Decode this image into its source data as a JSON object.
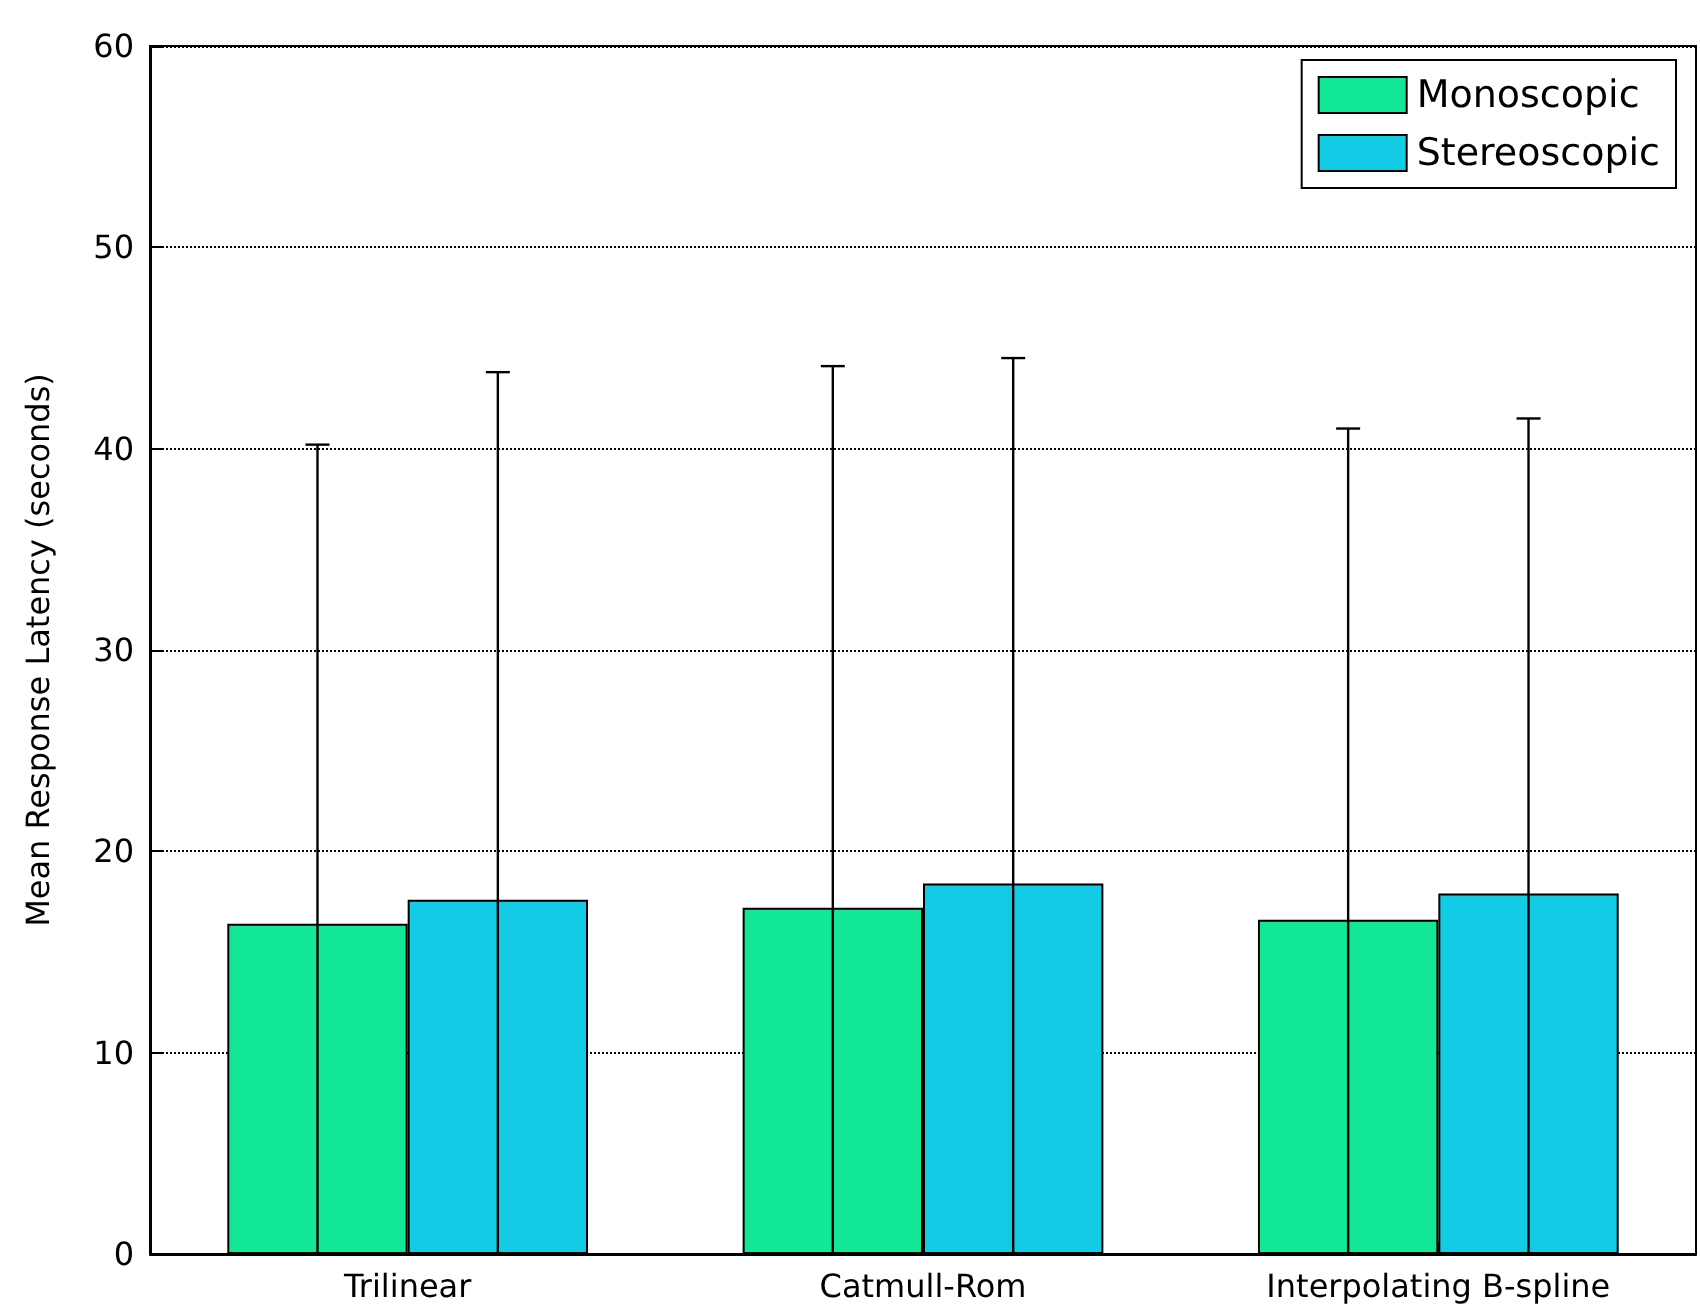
{
  "chart_data": {
    "type": "bar",
    "ylabel": "Mean Response Latency (seconds)",
    "categories": [
      "Trilinear",
      "Catmull-Rom",
      "Interpolating B-spline"
    ],
    "series": [
      {
        "name": "Monoscopic",
        "color": "#12e796",
        "values": [
          16.4,
          17.2,
          16.6
        ],
        "errors": [
          23.8,
          26.9,
          24.4
        ]
      },
      {
        "name": "Stereoscopic",
        "color": "#12cce6",
        "values": [
          17.6,
          18.4,
          17.9
        ],
        "errors": [
          26.2,
          26.1,
          23.6
        ]
      }
    ],
    "ylim": [
      0,
      60
    ],
    "yticks": [
      0,
      10,
      20,
      30,
      40,
      50,
      60
    ],
    "grid": "y",
    "legend": "top right"
  }
}
